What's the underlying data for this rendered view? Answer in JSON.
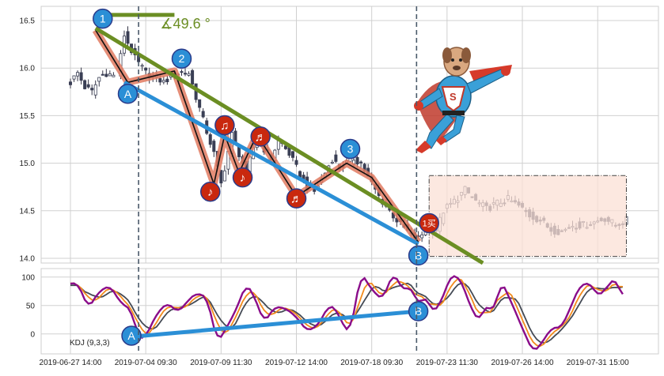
{
  "chart_data": {
    "type": "candlestick",
    "instrument_indicator": "KDJ (9,3,3)",
    "price_panel": {
      "ylim": [
        13.95,
        16.65
      ],
      "yticks": [
        "14.0",
        "14.5",
        "15.0",
        "15.5",
        "16.0",
        "16.5"
      ],
      "ytick_values": [
        14.0,
        14.5,
        15.0,
        15.5,
        16.0,
        16.5
      ],
      "grid": true
    },
    "kdj_panel": {
      "ylim": [
        -35,
        115
      ],
      "yticks": [
        "0",
        "50",
        "100"
      ],
      "ytick_values": [
        0,
        50,
        100
      ],
      "grid": true,
      "label": "KDJ (9,3,3)"
    },
    "xlim": [
      0,
      170
    ],
    "x_ticks": [
      {
        "label": "2019-06-27 14:00",
        "t": 0
      },
      {
        "label": "2019-07-04 09:30",
        "t": 21
      },
      {
        "label": "2019-07-09 11:30",
        "t": 42
      },
      {
        "label": "2019-07-12 14:00",
        "t": 63
      },
      {
        "label": "2019-07-18 09:30",
        "t": 84
      },
      {
        "label": "2019-07-23 11:30",
        "t": 105
      },
      {
        "label": "2019-07-26 14:00",
        "t": 126
      },
      {
        "label": "2019-07-31 15:00",
        "t": 147
      }
    ],
    "vertical_markers_t": [
      19,
      96.5
    ],
    "price_anchors": [
      [
        0,
        15.85
      ],
      [
        2,
        15.95
      ],
      [
        4,
        15.8
      ],
      [
        6,
        15.75
      ],
      [
        8,
        15.9
      ],
      [
        10,
        15.95
      ],
      [
        13,
        15.9
      ],
      [
        15,
        16.35
      ],
      [
        18,
        16.1
      ],
      [
        21,
        15.95
      ],
      [
        24,
        15.9
      ],
      [
        26,
        15.85
      ],
      [
        29,
        15.95
      ],
      [
        33,
        15.95
      ],
      [
        35,
        15.7
      ],
      [
        37,
        15.45
      ],
      [
        40,
        15.1
      ],
      [
        42,
        14.78
      ],
      [
        45,
        15.3
      ],
      [
        47,
        15.1
      ],
      [
        49,
        14.9
      ],
      [
        52,
        15.3
      ],
      [
        54,
        15.15
      ],
      [
        56,
        15.05
      ],
      [
        58,
        15.25
      ],
      [
        61,
        15.1
      ],
      [
        63,
        14.95
      ],
      [
        66,
        14.75
      ],
      [
        68,
        14.7
      ],
      [
        71,
        14.9
      ],
      [
        73,
        15.05
      ],
      [
        75,
        14.95
      ],
      [
        77,
        15.0
      ],
      [
        79,
        15.05
      ],
      [
        81,
        15.0
      ],
      [
        83,
        14.85
      ],
      [
        86,
        14.65
      ],
      [
        89,
        14.5
      ],
      [
        92,
        14.35
      ],
      [
        95,
        14.25
      ],
      [
        97,
        14.2
      ],
      [
        99,
        14.3
      ],
      [
        102,
        14.3
      ],
      [
        104,
        14.5
      ],
      [
        107,
        14.6
      ],
      [
        110,
        14.72
      ],
      [
        113,
        14.6
      ],
      [
        116,
        14.52
      ],
      [
        119,
        14.58
      ],
      [
        122,
        14.62
      ],
      [
        125,
        14.55
      ],
      [
        128,
        14.45
      ],
      [
        131,
        14.4
      ],
      [
        134,
        14.3
      ],
      [
        137,
        14.28
      ],
      [
        140,
        14.35
      ],
      [
        143,
        14.35
      ],
      [
        146,
        14.38
      ],
      [
        149,
        14.42
      ],
      [
        152,
        14.35
      ],
      [
        155,
        14.4
      ]
    ],
    "kdj_anchors": [
      [
        0,
        88
      ],
      [
        2,
        90
      ],
      [
        5,
        45
      ],
      [
        8,
        75
      ],
      [
        11,
        85
      ],
      [
        14,
        55
      ],
      [
        17,
        42
      ],
      [
        19,
        -8
      ],
      [
        21,
        -5
      ],
      [
        24,
        35
      ],
      [
        27,
        55
      ],
      [
        30,
        38
      ],
      [
        33,
        60
      ],
      [
        35,
        72
      ],
      [
        38,
        65
      ],
      [
        41,
        -15
      ],
      [
        43,
        5
      ],
      [
        46,
        40
      ],
      [
        49,
        88
      ],
      [
        51,
        70
      ],
      [
        54,
        20
      ],
      [
        57,
        48
      ],
      [
        60,
        45
      ],
      [
        63,
        30
      ],
      [
        66,
        5
      ],
      [
        69,
        15
      ],
      [
        72,
        50
      ],
      [
        74,
        45
      ],
      [
        76,
        15
      ],
      [
        78,
        2
      ],
      [
        81,
        108
      ],
      [
        84,
        78
      ],
      [
        87,
        60
      ],
      [
        90,
        108
      ],
      [
        93,
        75
      ],
      [
        95,
        85
      ],
      [
        97,
        48
      ],
      [
        99,
        70
      ],
      [
        101,
        35
      ],
      [
        104,
        65
      ],
      [
        106,
        105
      ],
      [
        109,
        95
      ],
      [
        111,
        55
      ],
      [
        114,
        20
      ],
      [
        116,
        55
      ],
      [
        118,
        35
      ],
      [
        120,
        95
      ],
      [
        123,
        55
      ],
      [
        126,
        10
      ],
      [
        129,
        -32
      ],
      [
        131,
        -20
      ],
      [
        134,
        10
      ],
      [
        137,
        12
      ],
      [
        140,
        55
      ],
      [
        142,
        85
      ],
      [
        145,
        90
      ],
      [
        147,
        65
      ],
      [
        149,
        78
      ],
      [
        152,
        100
      ],
      [
        154,
        60
      ]
    ],
    "drawings": {
      "green_trendline": {
        "from": [
          7,
          16.42
        ],
        "to": [
          115,
          13.92
        ],
        "color": "#6b8e23",
        "angle_label": "∡49.6 °",
        "legend_line_t": [
          8,
          29
        ]
      },
      "blue_price_line": {
        "from": [
          15,
          15.85
        ],
        "to": [
          97,
          14.15
        ],
        "color": "#2b8fd6"
      },
      "blue_kdj_line": {
        "from": [
          17,
          -5
        ],
        "to": [
          97,
          40
        ],
        "color": "#2b8fd6"
      },
      "pattern_polyline": [
        [
          7,
          16.4
        ],
        [
          16,
          15.85
        ],
        [
          29,
          15.97
        ],
        [
          40,
          14.78
        ],
        [
          43,
          15.3
        ],
        [
          47,
          14.9
        ],
        [
          52,
          15.3
        ],
        [
          63,
          14.65
        ],
        [
          77,
          15.0
        ],
        [
          84,
          14.85
        ],
        [
          97,
          14.17
        ]
      ],
      "pattern_color": "#e07a60",
      "numbered_markers": [
        {
          "label": "1",
          "t": 9,
          "v": 16.52
        },
        {
          "label": "2",
          "t": 31,
          "v": 16.1
        },
        {
          "label": "3",
          "t": 78,
          "v": 15.15
        }
      ],
      "price_letter_markers": [
        {
          "label": "A",
          "t": 16,
          "v": 15.73
        },
        {
          "label": "B",
          "t": 97,
          "v": 14.03
        }
      ],
      "kdj_letter_markers": [
        {
          "label": "A",
          "t": 17,
          "v": -3
        },
        {
          "label": "B",
          "t": 97,
          "v": 40
        }
      ],
      "note_markers": [
        {
          "label": "♪",
          "t": 39,
          "v": 14.7
        },
        {
          "label": "♫",
          "t": 43,
          "v": 15.4
        },
        {
          "label": "♪",
          "t": 48,
          "v": 14.85
        },
        {
          "label": "♬",
          "t": 53,
          "v": 15.28
        },
        {
          "label": "♬",
          "t": 63,
          "v": 14.63
        }
      ],
      "buy_marker": {
        "label": "1买",
        "t": 100,
        "v": 14.37
      },
      "highlight_box": {
        "t_from": 100,
        "t_to": 155,
        "v_from": 14.02,
        "v_to": 14.87,
        "fill": "#fbe0d5",
        "stroke": "#444444"
      }
    }
  }
}
